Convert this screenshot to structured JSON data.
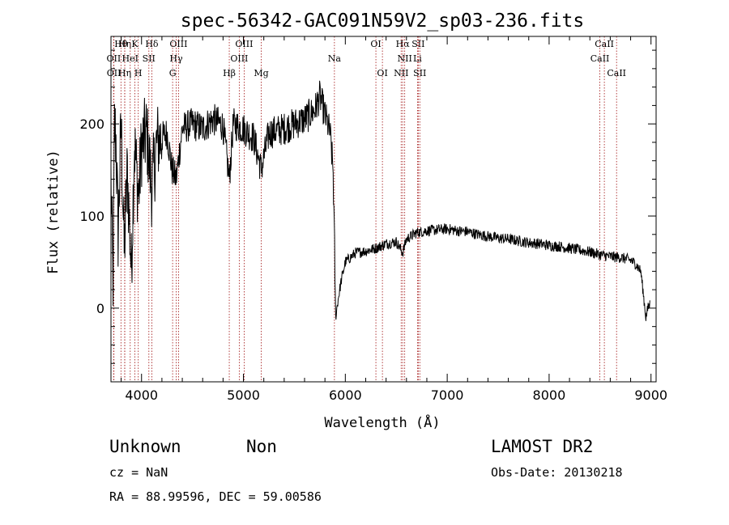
{
  "chart_data": {
    "type": "line",
    "title": "spec-56342-GAC091N59V2_sp03-236.fits",
    "xlabel": "Wavelength (Å)",
    "ylabel": "Flux (relative)",
    "xlim": [
      3700,
      9050
    ],
    "ylim": [
      -80,
      295
    ],
    "xticks": [
      4000,
      5000,
      6000,
      7000,
      8000,
      9000
    ],
    "yticks": [
      0,
      100,
      200
    ],
    "line_color": "#000000",
    "marker_color": "#a01010",
    "spectrum_anchors": [
      [
        3700,
        140
      ],
      [
        3720,
        20
      ],
      [
        3735,
        200
      ],
      [
        3750,
        180
      ],
      [
        3770,
        80
      ],
      [
        3800,
        200
      ],
      [
        3830,
        60
      ],
      [
        3860,
        150
      ],
      [
        3900,
        40
      ],
      [
        3930,
        180
      ],
      [
        3970,
        120
      ],
      [
        4000,
        175
      ],
      [
        4050,
        190
      ],
      [
        4101,
        130
      ],
      [
        4150,
        180
      ],
      [
        4200,
        185
      ],
      [
        4250,
        190
      ],
      [
        4300,
        150
      ],
      [
        4340,
        140
      ],
      [
        4400,
        195
      ],
      [
        4500,
        200
      ],
      [
        4600,
        195
      ],
      [
        4700,
        205
      ],
      [
        4800,
        198
      ],
      [
        4861,
        140
      ],
      [
        4900,
        200
      ],
      [
        5000,
        195
      ],
      [
        5100,
        185
      ],
      [
        5175,
        150
      ],
      [
        5250,
        190
      ],
      [
        5400,
        195
      ],
      [
        5500,
        200
      ],
      [
        5600,
        205
      ],
      [
        5700,
        215
      ],
      [
        5750,
        230
      ],
      [
        5800,
        210
      ],
      [
        5850,
        190
      ],
      [
        5880,
        150
      ],
      [
        5895,
        60
      ],
      [
        5905,
        -10
      ],
      [
        5930,
        10
      ],
      [
        5960,
        30
      ],
      [
        6000,
        50
      ],
      [
        6050,
        55
      ],
      [
        6100,
        60
      ],
      [
        6200,
        62
      ],
      [
        6300,
        65
      ],
      [
        6400,
        70
      ],
      [
        6500,
        72
      ],
      [
        6563,
        60
      ],
      [
        6600,
        75
      ],
      [
        6700,
        82
      ],
      [
        6800,
        84
      ],
      [
        6900,
        85
      ],
      [
        7000,
        86
      ],
      [
        7100,
        84
      ],
      [
        7200,
        83
      ],
      [
        7300,
        80
      ],
      [
        7400,
        78
      ],
      [
        7500,
        76
      ],
      [
        7600,
        75
      ],
      [
        7700,
        73
      ],
      [
        7800,
        71
      ],
      [
        7900,
        70
      ],
      [
        8000,
        68
      ],
      [
        8100,
        67
      ],
      [
        8200,
        65
      ],
      [
        8300,
        63
      ],
      [
        8400,
        61
      ],
      [
        8500,
        58
      ],
      [
        8600,
        56
      ],
      [
        8700,
        55
      ],
      [
        8800,
        52
      ],
      [
        8850,
        48
      ],
      [
        8900,
        40
      ],
      [
        8950,
        -10
      ],
      [
        8970,
        0
      ],
      [
        8990,
        5
      ]
    ],
    "lines": [
      {
        "label": "Hθ",
        "wavelength": 3798,
        "row": 0
      },
      {
        "label": "Hη",
        "wavelength": 3835,
        "row": 0
      },
      {
        "label": "K",
        "wavelength": 3934,
        "row": 0
      },
      {
        "label": "Hδ",
        "wavelength": 4101,
        "row": 0
      },
      {
        "label": "OIII",
        "wavelength": 4363,
        "row": 0
      },
      {
        "label": "OIII",
        "wavelength": 5007,
        "row": 0
      },
      {
        "label": "OI",
        "wavelength": 6300,
        "row": 0
      },
      {
        "label": "Hα",
        "wavelength": 6563,
        "row": 0
      },
      {
        "label": "SII",
        "wavelength": 6716,
        "row": 0
      },
      {
        "label": "CaII",
        "wavelength": 8542,
        "row": 0
      },
      {
        "label": "OII",
        "wavelength": 3727,
        "row": 1
      },
      {
        "label": "HeI",
        "wavelength": 3889,
        "row": 1
      },
      {
        "label": "SII",
        "wavelength": 4072,
        "row": 1
      },
      {
        "label": "Hγ",
        "wavelength": 4340,
        "row": 1
      },
      {
        "label": "OIII",
        "wavelength": 4959,
        "row": 1
      },
      {
        "label": "Na",
        "wavelength": 5893,
        "row": 1
      },
      {
        "label": "NII",
        "wavelength": 6583,
        "row": 1
      },
      {
        "label": "Li",
        "wavelength": 6708,
        "row": 1
      },
      {
        "label": "CaII",
        "wavelength": 8498,
        "row": 1
      },
      {
        "label": "OII",
        "wavelength": 3729,
        "row": 2
      },
      {
        "label": "Hη",
        "wavelength": 3835,
        "row": 2
      },
      {
        "label": "H",
        "wavelength": 3968,
        "row": 2
      },
      {
        "label": "G",
        "wavelength": 4305,
        "row": 2
      },
      {
        "label": "Hβ",
        "wavelength": 4861,
        "row": 2
      },
      {
        "label": "Mg",
        "wavelength": 5175,
        "row": 2
      },
      {
        "label": "OI",
        "wavelength": 6364,
        "row": 2
      },
      {
        "label": "NII",
        "wavelength": 6548,
        "row": 2
      },
      {
        "label": "SII",
        "wavelength": 6731,
        "row": 2
      },
      {
        "label": "CaII",
        "wavelength": 8662,
        "row": 2
      }
    ]
  },
  "info": {
    "class": "Unknown",
    "subclass": "Non",
    "survey": "LAMOST DR2",
    "cz": "cz = NaN",
    "obs_date": "Obs-Date: 20130218",
    "coords": "RA =  88.99596, DEC =  59.00586"
  }
}
